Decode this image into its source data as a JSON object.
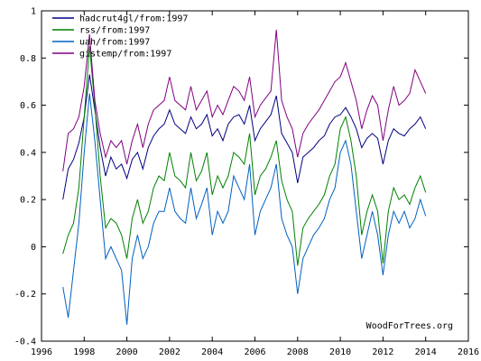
{
  "chart_data": {
    "type": "line",
    "title": "",
    "xlabel": "",
    "ylabel": "",
    "xlim": [
      1996,
      2016
    ],
    "ylim": [
      -0.4,
      1
    ],
    "x_ticks": [
      1996,
      1998,
      2000,
      2002,
      2004,
      2006,
      2008,
      2010,
      2012,
      2014,
      2016
    ],
    "y_ticks": [
      -0.4,
      -0.2,
      0,
      0.2,
      0.4,
      0.6,
      0.8,
      1
    ],
    "grid": false,
    "legend_position": "top-left",
    "credit": "WoodForTrees.org",
    "series": [
      {
        "name": "hadcrut4gl/from:1997",
        "color": "#000080",
        "x": [
          1997.0,
          1997.25,
          1997.5,
          1997.75,
          1998.0,
          1998.25,
          1998.5,
          1998.75,
          1999.0,
          1999.25,
          1999.5,
          1999.75,
          2000.0,
          2000.25,
          2000.5,
          2000.75,
          2001.0,
          2001.25,
          2001.5,
          2001.75,
          2002.0,
          2002.25,
          2002.5,
          2002.75,
          2003.0,
          2003.25,
          2003.5,
          2003.75,
          2004.0,
          2004.25,
          2004.5,
          2004.75,
          2005.0,
          2005.25,
          2005.5,
          2005.75,
          2006.0,
          2006.25,
          2006.5,
          2006.75,
          2007.0,
          2007.25,
          2007.5,
          2007.75,
          2008.0,
          2008.25,
          2008.5,
          2008.75,
          2009.0,
          2009.25,
          2009.5,
          2009.75,
          2010.0,
          2010.25,
          2010.5,
          2010.75,
          2011.0,
          2011.25,
          2011.5,
          2011.75,
          2012.0,
          2012.25,
          2012.5,
          2012.75,
          2013.0,
          2013.25,
          2013.5,
          2013.75,
          2014.0
        ],
        "y": [
          0.2,
          0.33,
          0.37,
          0.44,
          0.55,
          0.73,
          0.58,
          0.42,
          0.3,
          0.38,
          0.33,
          0.35,
          0.29,
          0.37,
          0.4,
          0.33,
          0.42,
          0.47,
          0.5,
          0.52,
          0.58,
          0.52,
          0.5,
          0.48,
          0.55,
          0.5,
          0.52,
          0.56,
          0.47,
          0.5,
          0.45,
          0.52,
          0.55,
          0.56,
          0.52,
          0.6,
          0.45,
          0.5,
          0.53,
          0.56,
          0.64,
          0.48,
          0.44,
          0.4,
          0.27,
          0.38,
          0.4,
          0.42,
          0.45,
          0.47,
          0.52,
          0.55,
          0.56,
          0.59,
          0.55,
          0.5,
          0.42,
          0.46,
          0.48,
          0.46,
          0.35,
          0.45,
          0.5,
          0.48,
          0.47,
          0.5,
          0.52,
          0.55,
          0.5
        ]
      },
      {
        "name": "rss/from:1997",
        "color": "#008000",
        "x": [
          1997.0,
          1997.25,
          1997.5,
          1997.75,
          1998.0,
          1998.25,
          1998.5,
          1998.75,
          1999.0,
          1999.25,
          1999.5,
          1999.75,
          2000.0,
          2000.25,
          2000.5,
          2000.75,
          2001.0,
          2001.25,
          2001.5,
          2001.75,
          2002.0,
          2002.25,
          2002.5,
          2002.75,
          2003.0,
          2003.25,
          2003.5,
          2003.75,
          2004.0,
          2004.25,
          2004.5,
          2004.75,
          2005.0,
          2005.25,
          2005.5,
          2005.75,
          2006.0,
          2006.25,
          2006.5,
          2006.75,
          2007.0,
          2007.25,
          2007.5,
          2007.75,
          2008.0,
          2008.25,
          2008.5,
          2008.75,
          2009.0,
          2009.25,
          2009.5,
          2009.75,
          2010.0,
          2010.25,
          2010.5,
          2010.75,
          2011.0,
          2011.25,
          2011.5,
          2011.75,
          2012.0,
          2012.25,
          2012.5,
          2012.75,
          2013.0,
          2013.25,
          2013.5,
          2013.75,
          2014.0
        ],
        "y": [
          -0.03,
          0.05,
          0.1,
          0.25,
          0.55,
          0.85,
          0.6,
          0.3,
          0.08,
          0.12,
          0.1,
          0.05,
          -0.05,
          0.12,
          0.2,
          0.1,
          0.15,
          0.25,
          0.3,
          0.28,
          0.4,
          0.3,
          0.28,
          0.25,
          0.4,
          0.28,
          0.32,
          0.4,
          0.22,
          0.3,
          0.25,
          0.3,
          0.4,
          0.38,
          0.35,
          0.48,
          0.22,
          0.3,
          0.33,
          0.38,
          0.45,
          0.28,
          0.2,
          0.15,
          -0.08,
          0.08,
          0.12,
          0.15,
          0.18,
          0.22,
          0.3,
          0.35,
          0.5,
          0.55,
          0.45,
          0.3,
          0.05,
          0.15,
          0.22,
          0.15,
          -0.07,
          0.15,
          0.25,
          0.2,
          0.22,
          0.18,
          0.25,
          0.3,
          0.23
        ]
      },
      {
        "name": "uah/from:1997",
        "color": "#0060c0",
        "x": [
          1997.0,
          1997.25,
          1997.5,
          1997.75,
          1998.0,
          1998.25,
          1998.5,
          1998.75,
          1999.0,
          1999.25,
          1999.5,
          1999.75,
          2000.0,
          2000.25,
          2000.5,
          2000.75,
          2001.0,
          2001.25,
          2001.5,
          2001.75,
          2002.0,
          2002.25,
          2002.5,
          2002.75,
          2003.0,
          2003.25,
          2003.5,
          2003.75,
          2004.0,
          2004.25,
          2004.5,
          2004.75,
          2005.0,
          2005.25,
          2005.5,
          2005.75,
          2006.0,
          2006.25,
          2006.5,
          2006.75,
          2007.0,
          2007.25,
          2007.5,
          2007.75,
          2008.0,
          2008.25,
          2008.5,
          2008.75,
          2009.0,
          2009.25,
          2009.5,
          2009.75,
          2010.0,
          2010.25,
          2010.5,
          2010.75,
          2011.0,
          2011.25,
          2011.5,
          2011.75,
          2012.0,
          2012.25,
          2012.5,
          2012.75,
          2013.0,
          2013.25,
          2013.5,
          2013.75,
          2014.0
        ],
        "y": [
          -0.17,
          -0.3,
          -0.1,
          0.1,
          0.4,
          0.65,
          0.45,
          0.2,
          -0.05,
          0.0,
          -0.05,
          -0.1,
          -0.33,
          -0.05,
          0.05,
          -0.05,
          0.0,
          0.1,
          0.15,
          0.15,
          0.25,
          0.15,
          0.12,
          0.1,
          0.25,
          0.12,
          0.18,
          0.25,
          0.05,
          0.15,
          0.1,
          0.15,
          0.3,
          0.25,
          0.2,
          0.35,
          0.05,
          0.15,
          0.2,
          0.25,
          0.35,
          0.12,
          0.05,
          0.0,
          -0.2,
          -0.05,
          0.0,
          0.05,
          0.08,
          0.12,
          0.2,
          0.25,
          0.4,
          0.45,
          0.35,
          0.15,
          -0.05,
          0.05,
          0.15,
          0.05,
          -0.12,
          0.05,
          0.15,
          0.1,
          0.15,
          0.08,
          0.12,
          0.2,
          0.13
        ]
      },
      {
        "name": "gistemp/from:1997",
        "color": "#800080",
        "x": [
          1997.0,
          1997.25,
          1997.5,
          1997.75,
          1998.0,
          1998.25,
          1998.5,
          1998.75,
          1999.0,
          1999.25,
          1999.5,
          1999.75,
          2000.0,
          2000.25,
          2000.5,
          2000.75,
          2001.0,
          2001.25,
          2001.5,
          2001.75,
          2002.0,
          2002.25,
          2002.5,
          2002.75,
          2003.0,
          2003.25,
          2003.5,
          2003.75,
          2004.0,
          2004.25,
          2004.5,
          2004.75,
          2005.0,
          2005.25,
          2005.5,
          2005.75,
          2006.0,
          2006.25,
          2006.5,
          2006.75,
          2007.0,
          2007.25,
          2007.5,
          2007.75,
          2008.0,
          2008.25,
          2008.5,
          2008.75,
          2009.0,
          2009.25,
          2009.5,
          2009.75,
          2010.0,
          2010.25,
          2010.5,
          2010.75,
          2011.0,
          2011.25,
          2011.5,
          2011.75,
          2012.0,
          2012.25,
          2012.5,
          2012.75,
          2013.0,
          2013.25,
          2013.5,
          2013.75,
          2014.0
        ],
        "y": [
          0.32,
          0.48,
          0.5,
          0.55,
          0.68,
          0.9,
          0.62,
          0.48,
          0.38,
          0.45,
          0.42,
          0.45,
          0.35,
          0.45,
          0.52,
          0.42,
          0.52,
          0.58,
          0.6,
          0.62,
          0.72,
          0.62,
          0.6,
          0.58,
          0.68,
          0.58,
          0.62,
          0.66,
          0.55,
          0.6,
          0.56,
          0.62,
          0.68,
          0.66,
          0.62,
          0.72,
          0.55,
          0.6,
          0.63,
          0.66,
          0.92,
          0.62,
          0.55,
          0.5,
          0.38,
          0.48,
          0.52,
          0.55,
          0.58,
          0.62,
          0.66,
          0.7,
          0.72,
          0.78,
          0.7,
          0.62,
          0.5,
          0.58,
          0.64,
          0.6,
          0.45,
          0.58,
          0.68,
          0.6,
          0.62,
          0.65,
          0.75,
          0.7,
          0.65
        ]
      }
    ]
  }
}
